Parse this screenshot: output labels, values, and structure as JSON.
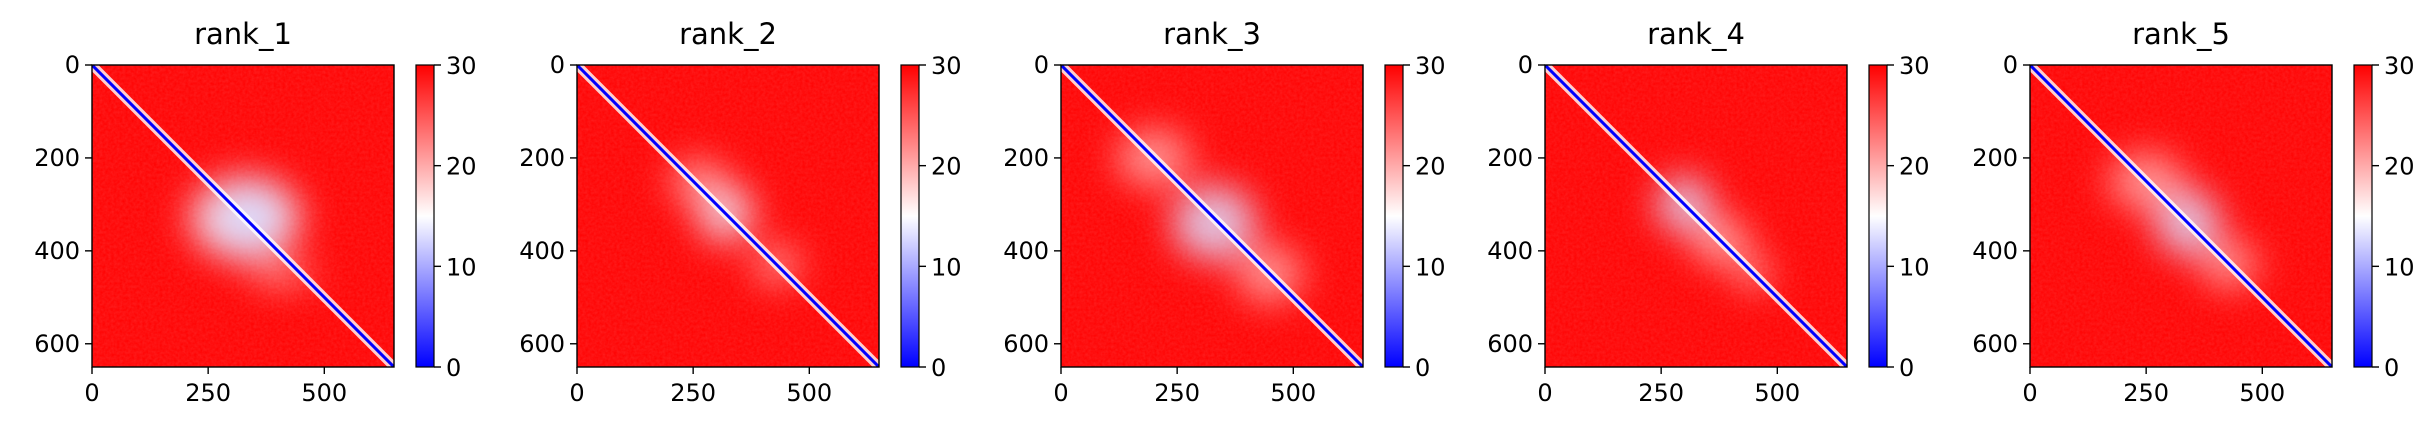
{
  "chart_data": [
    {
      "type": "heatmap",
      "title": "rank_1",
      "xlim": [
        0,
        650
      ],
      "ylim": [
        650,
        0
      ],
      "xticks": [
        0,
        250,
        500
      ],
      "yticks": [
        0,
        200,
        400,
        600
      ],
      "colorbar": {
        "min": 0,
        "max": 30,
        "ticks": [
          0,
          10,
          20,
          30
        ],
        "colors": [
          "#0000ff",
          "#ffffff",
          "#ff0000"
        ]
      },
      "features": {
        "blobs": [
          {
            "x": 340,
            "y": 330,
            "rx": 65,
            "ry": 75,
            "value": 6
          },
          {
            "x": 330,
            "y": 330,
            "rx": 120,
            "ry": 90,
            "value": 14
          },
          {
            "x": 410,
            "y": 450,
            "rx": 70,
            "ry": 20,
            "value": 18
          }
        ]
      }
    },
    {
      "type": "heatmap",
      "title": "rank_2",
      "xlim": [
        0,
        650
      ],
      "ylim": [
        650,
        0
      ],
      "xticks": [
        0,
        250,
        500
      ],
      "yticks": [
        0,
        200,
        400,
        600
      ],
      "colorbar": {
        "min": 0,
        "max": 30,
        "ticks": [
          0,
          10,
          20,
          30
        ],
        "colors": [
          "#0000ff",
          "#ffffff",
          "#ff0000"
        ]
      },
      "features": {
        "blobs": [
          {
            "x": 320,
            "y": 320,
            "rx": 60,
            "ry": 60,
            "value": 14
          },
          {
            "x": 260,
            "y": 250,
            "rx": 60,
            "ry": 45,
            "value": 20
          },
          {
            "x": 430,
            "y": 430,
            "rx": 50,
            "ry": 40,
            "value": 20
          }
        ]
      }
    },
    {
      "type": "heatmap",
      "title": "rank_3",
      "xlim": [
        0,
        650
      ],
      "ylim": [
        650,
        0
      ],
      "xticks": [
        0,
        250,
        500
      ],
      "yticks": [
        0,
        200,
        400,
        600
      ],
      "colorbar": {
        "min": 0,
        "max": 30,
        "ticks": [
          0,
          10,
          20,
          30
        ],
        "colors": [
          "#0000ff",
          "#ffffff",
          "#ff0000"
        ]
      },
      "features": {
        "blobs": [
          {
            "x": 330,
            "y": 340,
            "rx": 90,
            "ry": 80,
            "value": 13
          },
          {
            "x": 200,
            "y": 200,
            "rx": 80,
            "ry": 60,
            "value": 20
          },
          {
            "x": 450,
            "y": 450,
            "rx": 70,
            "ry": 60,
            "value": 20
          }
        ]
      }
    },
    {
      "type": "heatmap",
      "title": "rank_4",
      "xlim": [
        0,
        650
      ],
      "ylim": [
        650,
        0
      ],
      "xticks": [
        0,
        250,
        500
      ],
      "yticks": [
        0,
        200,
        400,
        600
      ],
      "colorbar": {
        "min": 0,
        "max": 30,
        "ticks": [
          0,
          10,
          20,
          30
        ],
        "colors": [
          "#0000ff",
          "#ffffff",
          "#ff0000"
        ]
      },
      "features": {
        "blobs": [
          {
            "x": 300,
            "y": 300,
            "rx": 60,
            "ry": 60,
            "value": 13
          },
          {
            "x": 380,
            "y": 380,
            "rx": 60,
            "ry": 50,
            "value": 19
          },
          {
            "x": 450,
            "y": 450,
            "rx": 30,
            "ry": 30,
            "value": 16
          }
        ]
      }
    },
    {
      "type": "heatmap",
      "title": "rank_5",
      "xlim": [
        0,
        650
      ],
      "ylim": [
        650,
        0
      ],
      "xticks": [
        0,
        250,
        500
      ],
      "yticks": [
        0,
        200,
        400,
        600
      ],
      "colorbar": {
        "min": 0,
        "max": 30,
        "ticks": [
          0,
          10,
          20,
          30
        ],
        "colors": [
          "#0000ff",
          "#ffffff",
          "#ff0000"
        ]
      },
      "features": {
        "blobs": [
          {
            "x": 340,
            "y": 340,
            "rx": 70,
            "ry": 70,
            "value": 13
          },
          {
            "x": 250,
            "y": 250,
            "rx": 80,
            "ry": 60,
            "value": 20
          },
          {
            "x": 430,
            "y": 430,
            "rx": 60,
            "ry": 50,
            "value": 20
          }
        ]
      }
    }
  ]
}
